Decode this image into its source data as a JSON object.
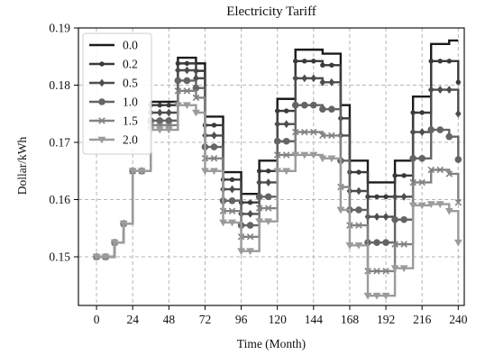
{
  "chart_data": {
    "type": "line",
    "title": "Electricity Tariff",
    "xlabel": "Time (Month)",
    "ylabel": "Dollar/kWh",
    "xlim": [
      -12,
      244
    ],
    "ylim": [
      0.1415,
      0.19
    ],
    "xticks": [
      0,
      24,
      48,
      72,
      96,
      120,
      144,
      168,
      192,
      216,
      240
    ],
    "yticks": [
      0.15,
      0.16,
      0.17,
      0.18,
      0.19
    ],
    "ytick_labels": [
      "0.15",
      "0.16",
      "0.17",
      "0.18",
      "0.19"
    ],
    "grid": true,
    "legend_position": "top-left",
    "x": [
      0,
      6,
      12,
      18,
      24,
      30,
      36,
      42,
      48,
      54,
      60,
      66,
      72,
      78,
      84,
      90,
      96,
      102,
      108,
      114,
      120,
      126,
      132,
      138,
      144,
      150,
      156,
      162,
      168,
      174,
      180,
      186,
      192,
      198,
      204,
      210,
      216,
      222,
      228,
      234,
      240
    ],
    "series": [
      {
        "name": "0.0",
        "color": "#1b1b1b",
        "marker": "none",
        "values": [
          0.15,
          0.15,
          0.1525,
          0.1558,
          0.165,
          0.165,
          0.1771,
          0.1771,
          0.1771,
          0.1848,
          0.1848,
          0.1838,
          0.1745,
          0.1745,
          0.1648,
          0.1648,
          0.161,
          0.161,
          0.1668,
          0.1668,
          0.1776,
          0.1776,
          0.1862,
          0.1862,
          0.1862,
          0.1855,
          0.1855,
          0.1765,
          0.1668,
          0.1668,
          0.163,
          0.163,
          0.163,
          0.1668,
          0.1668,
          0.178,
          0.178,
          0.1872,
          0.1872,
          0.1878,
          0.1878
        ]
      },
      {
        "name": "0.2",
        "color": "#3a3a3a",
        "marker": "dot",
        "values": [
          0.15,
          0.15,
          0.1525,
          0.1558,
          0.165,
          0.165,
          0.1765,
          0.1765,
          0.1765,
          0.1838,
          0.1838,
          0.1825,
          0.173,
          0.173,
          0.1635,
          0.1635,
          0.1595,
          0.1595,
          0.165,
          0.165,
          0.1755,
          0.1755,
          0.1842,
          0.1842,
          0.1842,
          0.1835,
          0.1835,
          0.1742,
          0.1648,
          0.1648,
          0.1605,
          0.1605,
          0.1605,
          0.1642,
          0.1642,
          0.1752,
          0.1752,
          0.1842,
          0.1842,
          0.1842,
          0.1805
        ]
      },
      {
        "name": "0.5",
        "color": "#4d4d4d",
        "marker": "diamond",
        "values": [
          0.15,
          0.15,
          0.1525,
          0.1558,
          0.165,
          0.165,
          0.1752,
          0.1752,
          0.1752,
          0.1826,
          0.1826,
          0.1812,
          0.1712,
          0.1712,
          0.1618,
          0.1618,
          0.1575,
          0.1575,
          0.163,
          0.163,
          0.1732,
          0.1732,
          0.1812,
          0.1812,
          0.1812,
          0.1805,
          0.1805,
          0.1712,
          0.1615,
          0.1615,
          0.157,
          0.157,
          0.157,
          0.1605,
          0.1605,
          0.1718,
          0.1718,
          0.1792,
          0.1792,
          0.1792,
          0.175
        ]
      },
      {
        "name": "1.0",
        "color": "#646464",
        "marker": "circle",
        "values": [
          0.15,
          0.15,
          0.1525,
          0.1558,
          0.165,
          0.165,
          0.1738,
          0.1738,
          0.1738,
          0.1808,
          0.1808,
          0.1795,
          0.1692,
          0.1692,
          0.1598,
          0.1598,
          0.1555,
          0.1555,
          0.1605,
          0.1605,
          0.1702,
          0.1702,
          0.1765,
          0.1765,
          0.1765,
          0.1758,
          0.1758,
          0.1668,
          0.1582,
          0.1582,
          0.1525,
          0.1525,
          0.1525,
          0.1565,
          0.1565,
          0.1672,
          0.1672,
          0.1722,
          0.1722,
          0.171,
          0.167
        ]
      },
      {
        "name": "1.5",
        "color": "#828282",
        "marker": "x",
        "values": [
          0.15,
          0.15,
          0.1525,
          0.1558,
          0.165,
          0.165,
          0.173,
          0.173,
          0.173,
          0.179,
          0.179,
          0.1778,
          0.1672,
          0.1672,
          0.158,
          0.158,
          0.1535,
          0.1535,
          0.1585,
          0.1585,
          0.1678,
          0.1678,
          0.1718,
          0.1718,
          0.1718,
          0.1712,
          0.1712,
          0.1622,
          0.1555,
          0.1555,
          0.1475,
          0.1475,
          0.1475,
          0.1522,
          0.1522,
          0.163,
          0.163,
          0.1652,
          0.1652,
          0.1645,
          0.1595
        ]
      },
      {
        "name": "2.0",
        "color": "#9b9b9b",
        "marker": "triangle-down",
        "values": [
          0.15,
          0.15,
          0.1525,
          0.1558,
          0.165,
          0.165,
          0.1722,
          0.1722,
          0.1722,
          0.1765,
          0.1765,
          0.1752,
          0.165,
          0.165,
          0.156,
          0.156,
          0.151,
          0.151,
          0.1562,
          0.1562,
          0.165,
          0.165,
          0.1678,
          0.1678,
          0.1678,
          0.1672,
          0.1672,
          0.1582,
          0.152,
          0.152,
          0.1432,
          0.1432,
          0.1432,
          0.148,
          0.148,
          0.159,
          0.159,
          0.1592,
          0.1592,
          0.158,
          0.1525
        ]
      }
    ]
  }
}
